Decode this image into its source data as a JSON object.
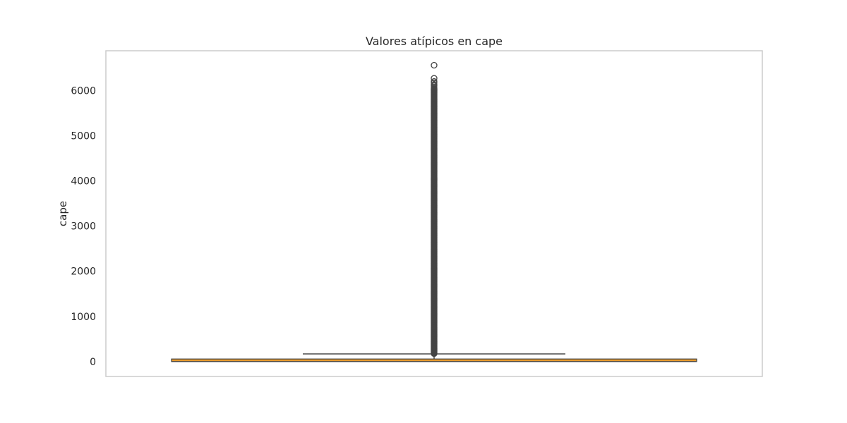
{
  "chart_data": {
    "type": "box",
    "title": "Valores atípicos en cape",
    "xlabel": "",
    "ylabel": "cape",
    "ylim": [
      -330,
      6880
    ],
    "yticks": [
      0,
      1000,
      2000,
      3000,
      4000,
      5000,
      6000
    ],
    "grid": false,
    "box": {
      "q1": 0,
      "median": 0,
      "q3": 57,
      "whisker_low": 0,
      "whisker_high": 170,
      "outlier_range": [
        175,
        6060
      ],
      "outliers_sparse": [
        6080,
        6110,
        6130,
        6170,
        6200,
        6270,
        6560
      ]
    },
    "colors": {
      "box_fill": "#e89a2c",
      "box_edge": "#3f3f3f",
      "whisker": "#4a4a4a",
      "outlier_edge": "#444444",
      "frame": "#cccccc",
      "text": "#262626"
    }
  }
}
